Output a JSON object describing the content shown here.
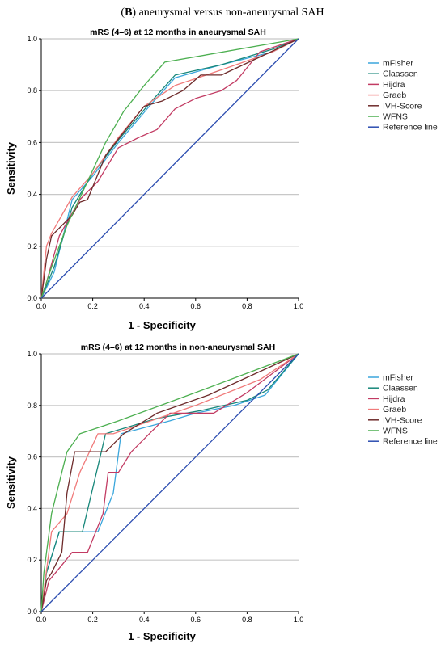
{
  "heading": {
    "letter": "B",
    "text": ") aneurysmal versus non-aneurysmal SAH",
    "open": "("
  },
  "chart_data": [
    {
      "type": "line",
      "title": "mRS (4–6) at 12 months in aneurysmal SAH",
      "xlabel": "1 - Specificity",
      "ylabel": "Sensitivity",
      "xlim": [
        0,
        1
      ],
      "ylim": [
        0,
        1
      ],
      "xticks": [
        "0.0",
        "0.2",
        "0.4",
        "0.6",
        "0.8",
        "1.0"
      ],
      "yticks": [
        "0.0",
        "0.2",
        "0.4",
        "0.6",
        "0.8",
        "1.0"
      ],
      "grid": "horizontal",
      "legend_position": "right",
      "series": [
        {
          "name": "mFisher",
          "color": "#3aa6dc",
          "points": [
            [
              0,
              0
            ],
            [
              0.05,
              0.1
            ],
            [
              0.12,
              0.38
            ],
            [
              0.2,
              0.47
            ],
            [
              0.3,
              0.6
            ],
            [
              0.42,
              0.74
            ],
            [
              0.52,
              0.85
            ],
            [
              0.7,
              0.9
            ],
            [
              0.9,
              0.95
            ],
            [
              1,
              1
            ]
          ]
        },
        {
          "name": "Claassen",
          "color": "#17877a",
          "points": [
            [
              0,
              0
            ],
            [
              0.05,
              0.12
            ],
            [
              0.12,
              0.35
            ],
            [
              0.2,
              0.48
            ],
            [
              0.3,
              0.61
            ],
            [
              0.42,
              0.75
            ],
            [
              0.52,
              0.86
            ],
            [
              0.7,
              0.9
            ],
            [
              0.9,
              0.96
            ],
            [
              1,
              1
            ]
          ]
        },
        {
          "name": "Hijdra",
          "color": "#c23b63",
          "points": [
            [
              0,
              0
            ],
            [
              0.02,
              0.06
            ],
            [
              0.07,
              0.24
            ],
            [
              0.15,
              0.38
            ],
            [
              0.22,
              0.45
            ],
            [
              0.3,
              0.58
            ],
            [
              0.38,
              0.62
            ],
            [
              0.45,
              0.65
            ],
            [
              0.52,
              0.73
            ],
            [
              0.6,
              0.77
            ],
            [
              0.7,
              0.8
            ],
            [
              0.76,
              0.84
            ],
            [
              0.85,
              0.95
            ],
            [
              1,
              1
            ]
          ]
        },
        {
          "name": "Graeb",
          "color": "#f07a7a",
          "points": [
            [
              0,
              0
            ],
            [
              0.02,
              0.2
            ],
            [
              0.04,
              0.25
            ],
            [
              0.12,
              0.39
            ],
            [
              0.2,
              0.48
            ],
            [
              0.3,
              0.62
            ],
            [
              0.4,
              0.74
            ],
            [
              0.52,
              0.82
            ],
            [
              0.7,
              0.88
            ],
            [
              0.9,
              0.95
            ],
            [
              1,
              1
            ]
          ]
        },
        {
          "name": "IVH-Score",
          "color": "#6e2b2b",
          "points": [
            [
              0,
              0
            ],
            [
              0.01,
              0.07
            ],
            [
              0.02,
              0.15
            ],
            [
              0.04,
              0.24
            ],
            [
              0.12,
              0.32
            ],
            [
              0.15,
              0.37
            ],
            [
              0.18,
              0.38
            ],
            [
              0.25,
              0.55
            ],
            [
              0.32,
              0.64
            ],
            [
              0.4,
              0.74
            ],
            [
              0.47,
              0.76
            ],
            [
              0.55,
              0.8
            ],
            [
              0.62,
              0.86
            ],
            [
              0.7,
              0.86
            ],
            [
              0.85,
              0.93
            ],
            [
              1,
              1
            ]
          ]
        },
        {
          "name": "WFNS",
          "color": "#4caf50",
          "points": [
            [
              0,
              0
            ],
            [
              0.04,
              0.12
            ],
            [
              0.1,
              0.28
            ],
            [
              0.18,
              0.45
            ],
            [
              0.25,
              0.6
            ],
            [
              0.32,
              0.72
            ],
            [
              0.4,
              0.82
            ],
            [
              0.48,
              0.91
            ],
            [
              1,
              1
            ]
          ]
        },
        {
          "name": "Reference line",
          "color": "#2c4db0",
          "points": [
            [
              0,
              0
            ],
            [
              1,
              1
            ]
          ]
        }
      ]
    },
    {
      "type": "line",
      "title": "mRS (4–6) at 12 months in non-aneurysmal SAH",
      "xlabel": "1 - Specificity",
      "ylabel": "Sensitivity",
      "xlim": [
        0,
        1
      ],
      "ylim": [
        0,
        1
      ],
      "xticks": [
        "0.0",
        "0.2",
        "0.4",
        "0.6",
        "0.8",
        "1.0"
      ],
      "yticks": [
        "0.0",
        "0.2",
        "0.4",
        "0.6",
        "0.8",
        "1.0"
      ],
      "grid": "horizontal",
      "legend_position": "right",
      "series": [
        {
          "name": "mFisher",
          "color": "#3aa6dc",
          "points": [
            [
              0,
              0
            ],
            [
              0.02,
              0.15
            ],
            [
              0.07,
              0.31
            ],
            [
              0.22,
              0.31
            ],
            [
              0.28,
              0.46
            ],
            [
              0.31,
              0.69
            ],
            [
              0.5,
              0.74
            ],
            [
              0.6,
              0.77
            ],
            [
              0.75,
              0.8
            ],
            [
              0.87,
              0.84
            ],
            [
              1,
              1
            ]
          ]
        },
        {
          "name": "Claassen",
          "color": "#17877a",
          "points": [
            [
              0,
              0
            ],
            [
              0.02,
              0.15
            ],
            [
              0.07,
              0.31
            ],
            [
              0.16,
              0.31
            ],
            [
              0.25,
              0.69
            ],
            [
              0.45,
              0.75
            ],
            [
              0.62,
              0.78
            ],
            [
              0.8,
              0.82
            ],
            [
              0.88,
              0.86
            ],
            [
              1,
              1
            ]
          ]
        },
        {
          "name": "Hijdra",
          "color": "#c23b63",
          "points": [
            [
              0,
              0
            ],
            [
              0.03,
              0.12
            ],
            [
              0.08,
              0.18
            ],
            [
              0.12,
              0.23
            ],
            [
              0.18,
              0.23
            ],
            [
              0.24,
              0.38
            ],
            [
              0.26,
              0.54
            ],
            [
              0.3,
              0.54
            ],
            [
              0.35,
              0.62
            ],
            [
              0.5,
              0.77
            ],
            [
              0.58,
              0.77
            ],
            [
              0.67,
              0.77
            ],
            [
              0.8,
              0.85
            ],
            [
              1,
              1
            ]
          ]
        },
        {
          "name": "Graeb",
          "color": "#f07a7a",
          "points": [
            [
              0,
              0
            ],
            [
              0.01,
              0.08
            ],
            [
              0.04,
              0.31
            ],
            [
              0.1,
              0.38
            ],
            [
              0.15,
              0.54
            ],
            [
              0.22,
              0.69
            ],
            [
              0.28,
              0.69
            ],
            [
              0.6,
              0.8
            ],
            [
              0.85,
              0.9
            ],
            [
              1,
              1
            ]
          ]
        },
        {
          "name": "IVH-Score",
          "color": "#6e2b2b",
          "points": [
            [
              0,
              0
            ],
            [
              0.02,
              0.12
            ],
            [
              0.04,
              0.15
            ],
            [
              0.08,
              0.23
            ],
            [
              0.1,
              0.46
            ],
            [
              0.13,
              0.62
            ],
            [
              0.2,
              0.62
            ],
            [
              0.25,
              0.62
            ],
            [
              0.32,
              0.69
            ],
            [
              0.45,
              0.77
            ],
            [
              0.65,
              0.84
            ],
            [
              1,
              1
            ]
          ]
        },
        {
          "name": "WFNS",
          "color": "#4caf50",
          "points": [
            [
              0,
              0
            ],
            [
              0.01,
              0.15
            ],
            [
              0.04,
              0.38
            ],
            [
              0.08,
              0.54
            ],
            [
              0.1,
              0.62
            ],
            [
              0.15,
              0.69
            ],
            [
              0.3,
              0.74
            ],
            [
              0.6,
              0.85
            ],
            [
              1,
              1
            ]
          ]
        },
        {
          "name": "Reference line",
          "color": "#2c4db0",
          "points": [
            [
              0,
              0
            ],
            [
              1,
              1
            ]
          ]
        }
      ]
    }
  ]
}
